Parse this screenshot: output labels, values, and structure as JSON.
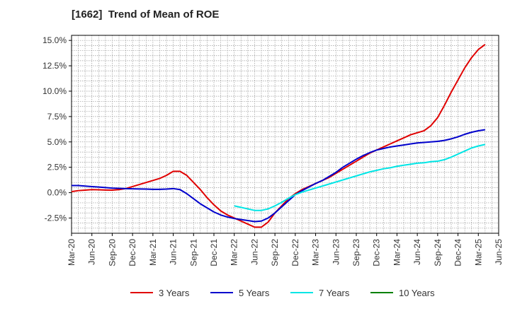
{
  "chart_data": {
    "type": "line",
    "title": "[1662]  Trend of Mean of ROE",
    "xlabel": "",
    "ylabel": "",
    "ylim": [
      -4.0,
      15.5
    ],
    "yticks": [
      -2.5,
      0.0,
      2.5,
      5.0,
      7.5,
      10.0,
      12.5,
      15.0
    ],
    "ytick_labels": [
      "-2.5%",
      "0.0%",
      "2.5%",
      "5.0%",
      "7.5%",
      "10.0%",
      "12.5%",
      "15.0%"
    ],
    "x_start": "Mar-20",
    "xtick_labels": [
      "Mar-20",
      "Jun-20",
      "Sep-20",
      "Dec-20",
      "Mar-21",
      "Jun-21",
      "Sep-21",
      "Dec-21",
      "Mar-22",
      "Jun-22",
      "Sep-22",
      "Dec-22",
      "Mar-23",
      "Jun-23",
      "Sep-23",
      "Dec-23",
      "Mar-24",
      "Jun-24",
      "Sep-24",
      "Dec-24",
      "Mar-25",
      "Jun-25"
    ],
    "grid": true,
    "legend_position": "bottom",
    "series": [
      {
        "name": "3 Years",
        "color": "#e00000",
        "points": [
          [
            "Mar-20",
            0.1
          ],
          [
            "Apr-20",
            0.2
          ],
          [
            "May-20",
            0.25
          ],
          [
            "Jun-20",
            0.3
          ],
          [
            "Jul-20",
            0.28
          ],
          [
            "Aug-20",
            0.26
          ],
          [
            "Sep-20",
            0.25
          ],
          [
            "Oct-20",
            0.3
          ],
          [
            "Nov-20",
            0.4
          ],
          [
            "Dec-20",
            0.6
          ],
          [
            "Jan-21",
            0.8
          ],
          [
            "Feb-21",
            1.0
          ],
          [
            "Mar-21",
            1.2
          ],
          [
            "Apr-21",
            1.4
          ],
          [
            "May-21",
            1.7
          ],
          [
            "Jun-21",
            2.1
          ],
          [
            "Jul-21",
            2.1
          ],
          [
            "Aug-21",
            1.7
          ],
          [
            "Sep-21",
            1.0
          ],
          [
            "Oct-21",
            0.3
          ],
          [
            "Nov-21",
            -0.5
          ],
          [
            "Dec-21",
            -1.2
          ],
          [
            "Jan-22",
            -1.8
          ],
          [
            "Feb-22",
            -2.2
          ],
          [
            "Mar-22",
            -2.5
          ],
          [
            "Apr-22",
            -2.8
          ],
          [
            "May-22",
            -3.1
          ],
          [
            "Jun-22",
            -3.4
          ],
          [
            "Jul-22",
            -3.4
          ],
          [
            "Aug-22",
            -2.9
          ],
          [
            "Sep-22",
            -2.0
          ],
          [
            "Oct-22",
            -1.3
          ],
          [
            "Nov-22",
            -0.6
          ],
          [
            "Dec-22",
            -0.1
          ],
          [
            "Jan-23",
            0.3
          ],
          [
            "Feb-23",
            0.6
          ],
          [
            "Mar-23",
            0.9
          ],
          [
            "Apr-23",
            1.2
          ],
          [
            "May-23",
            1.5
          ],
          [
            "Jun-23",
            1.9
          ],
          [
            "Jul-23",
            2.3
          ],
          [
            "Aug-23",
            2.7
          ],
          [
            "Sep-23",
            3.1
          ],
          [
            "Oct-23",
            3.5
          ],
          [
            "Nov-23",
            3.9
          ],
          [
            "Dec-23",
            4.2
          ],
          [
            "Jan-24",
            4.5
          ],
          [
            "Feb-24",
            4.8
          ],
          [
            "Mar-24",
            5.1
          ],
          [
            "Apr-24",
            5.4
          ],
          [
            "May-24",
            5.7
          ],
          [
            "Jun-24",
            5.9
          ],
          [
            "Jul-24",
            6.1
          ],
          [
            "Aug-24",
            6.6
          ],
          [
            "Sep-24",
            7.4
          ],
          [
            "Oct-24",
            8.6
          ],
          [
            "Nov-24",
            9.9
          ],
          [
            "Dec-24",
            11.1
          ],
          [
            "Jan-25",
            12.3
          ],
          [
            "Feb-25",
            13.3
          ],
          [
            "Mar-25",
            14.1
          ],
          [
            "Apr-25",
            14.6
          ]
        ]
      },
      {
        "name": "5 Years",
        "color": "#0000cc",
        "points": [
          [
            "Mar-20",
            0.7
          ],
          [
            "Apr-20",
            0.7
          ],
          [
            "May-20",
            0.65
          ],
          [
            "Jun-20",
            0.6
          ],
          [
            "Jul-20",
            0.55
          ],
          [
            "Aug-20",
            0.5
          ],
          [
            "Sep-20",
            0.45
          ],
          [
            "Oct-20",
            0.42
          ],
          [
            "Nov-20",
            0.4
          ],
          [
            "Dec-20",
            0.38
          ],
          [
            "Jan-21",
            0.36
          ],
          [
            "Feb-21",
            0.35
          ],
          [
            "Mar-21",
            0.33
          ],
          [
            "Apr-21",
            0.33
          ],
          [
            "May-21",
            0.35
          ],
          [
            "Jun-21",
            0.4
          ],
          [
            "Jul-21",
            0.3
          ],
          [
            "Aug-21",
            -0.1
          ],
          [
            "Sep-21",
            -0.6
          ],
          [
            "Oct-21",
            -1.1
          ],
          [
            "Nov-21",
            -1.5
          ],
          [
            "Dec-21",
            -1.9
          ],
          [
            "Jan-22",
            -2.2
          ],
          [
            "Feb-22",
            -2.4
          ],
          [
            "Mar-22",
            -2.55
          ],
          [
            "Apr-22",
            -2.65
          ],
          [
            "May-22",
            -2.75
          ],
          [
            "Jun-22",
            -2.85
          ],
          [
            "Jul-22",
            -2.8
          ],
          [
            "Aug-22",
            -2.5
          ],
          [
            "Sep-22",
            -2.0
          ],
          [
            "Oct-22",
            -1.4
          ],
          [
            "Nov-22",
            -0.8
          ],
          [
            "Dec-22",
            -0.2
          ],
          [
            "Jan-23",
            0.2
          ],
          [
            "Feb-23",
            0.55
          ],
          [
            "Mar-23",
            0.9
          ],
          [
            "Apr-23",
            1.2
          ],
          [
            "May-23",
            1.6
          ],
          [
            "Jun-23",
            2.0
          ],
          [
            "Jul-23",
            2.5
          ],
          [
            "Aug-23",
            2.9
          ],
          [
            "Sep-23",
            3.3
          ],
          [
            "Oct-23",
            3.65
          ],
          [
            "Nov-23",
            3.95
          ],
          [
            "Dec-23",
            4.2
          ],
          [
            "Jan-24",
            4.35
          ],
          [
            "Feb-24",
            4.5
          ],
          [
            "Mar-24",
            4.6
          ],
          [
            "Apr-24",
            4.7
          ],
          [
            "May-24",
            4.8
          ],
          [
            "Jun-24",
            4.9
          ],
          [
            "Jul-24",
            4.95
          ],
          [
            "Aug-24",
            5.0
          ],
          [
            "Sep-24",
            5.05
          ],
          [
            "Oct-24",
            5.15
          ],
          [
            "Nov-24",
            5.3
          ],
          [
            "Dec-24",
            5.5
          ],
          [
            "Jan-25",
            5.75
          ],
          [
            "Feb-25",
            5.95
          ],
          [
            "Mar-25",
            6.1
          ],
          [
            "Apr-25",
            6.2
          ]
        ]
      },
      {
        "name": "7 Years",
        "color": "#00e5e5",
        "points": [
          [
            "Mar-22",
            -1.3
          ],
          [
            "Apr-22",
            -1.45
          ],
          [
            "May-22",
            -1.6
          ],
          [
            "Jun-22",
            -1.75
          ],
          [
            "Jul-22",
            -1.75
          ],
          [
            "Aug-22",
            -1.6
          ],
          [
            "Sep-22",
            -1.3
          ],
          [
            "Oct-22",
            -0.95
          ],
          [
            "Nov-22",
            -0.55
          ],
          [
            "Dec-22",
            -0.2
          ],
          [
            "Jan-23",
            0.05
          ],
          [
            "Feb-23",
            0.25
          ],
          [
            "Mar-23",
            0.45
          ],
          [
            "Apr-23",
            0.65
          ],
          [
            "May-23",
            0.85
          ],
          [
            "Jun-23",
            1.05
          ],
          [
            "Jul-23",
            1.25
          ],
          [
            "Aug-23",
            1.45
          ],
          [
            "Sep-23",
            1.65
          ],
          [
            "Oct-23",
            1.85
          ],
          [
            "Nov-23",
            2.05
          ],
          [
            "Dec-23",
            2.2
          ],
          [
            "Jan-24",
            2.35
          ],
          [
            "Feb-24",
            2.45
          ],
          [
            "Mar-24",
            2.6
          ],
          [
            "Apr-24",
            2.7
          ],
          [
            "May-24",
            2.8
          ],
          [
            "Jun-24",
            2.9
          ],
          [
            "Jul-24",
            2.95
          ],
          [
            "Aug-24",
            3.05
          ],
          [
            "Sep-24",
            3.1
          ],
          [
            "Oct-24",
            3.25
          ],
          [
            "Nov-24",
            3.5
          ],
          [
            "Dec-24",
            3.8
          ],
          [
            "Jan-25",
            4.1
          ],
          [
            "Feb-25",
            4.4
          ],
          [
            "Mar-25",
            4.6
          ],
          [
            "Apr-25",
            4.75
          ]
        ]
      },
      {
        "name": "10 Years",
        "color": "#008000",
        "points": []
      }
    ]
  }
}
